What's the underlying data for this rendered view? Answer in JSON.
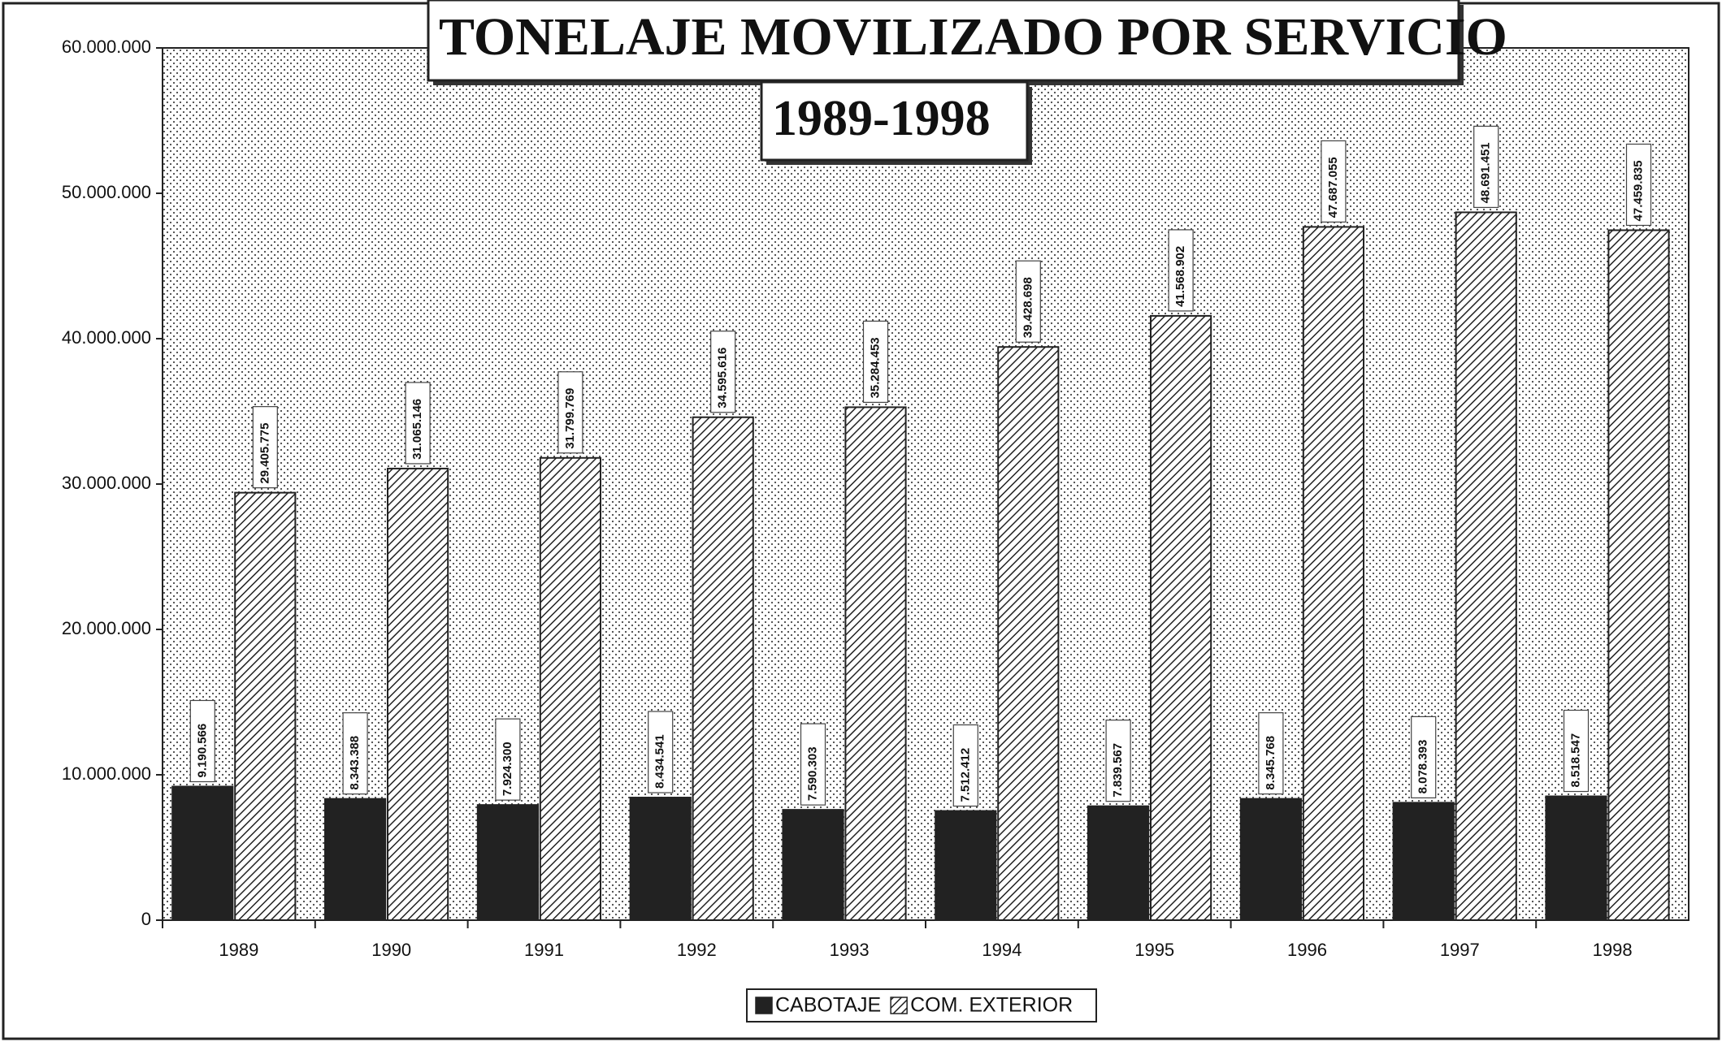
{
  "chart_data": {
    "type": "bar",
    "title": "TONELAJE MOVILIZADO POR SERVICIO",
    "subtitle": "1989-1998",
    "categories": [
      "1989",
      "1990",
      "1991",
      "1992",
      "1993",
      "1994",
      "1995",
      "1996",
      "1997",
      "1998"
    ],
    "series": [
      {
        "name": "CABOTAJE",
        "color": "#222222",
        "values": [
          9190566,
          8343388,
          7924300,
          8434541,
          7590303,
          7512412,
          7839567,
          8345768,
          8078393,
          8518547
        ],
        "value_labels": [
          "9.190.566",
          "8.343.388",
          "7.924.300",
          "8.434.541",
          "7.590.303",
          "7.512.412",
          "7.839.567",
          "8.345.768",
          "8.078.393",
          "8.518.547"
        ]
      },
      {
        "name": "COM. EXTERIOR",
        "color": "hatch",
        "values": [
          29405775,
          31065146,
          31799769,
          34595616,
          35284453,
          39428698,
          41568902,
          47687055,
          48691451,
          47459835
        ],
        "value_labels": [
          "29.405.775",
          "31.065.146",
          "31.799.769",
          "34.595.616",
          "35.284.453",
          "39.428.698",
          "41.568.902",
          "47.687.055",
          "48.691.451",
          "47.459.835"
        ]
      }
    ],
    "ylim": [
      0,
      60000000
    ],
    "yticks": [
      0,
      {
        "value": 10000000,
        "label": "10.000.000"
      },
      {
        "value": 20000000,
        "label": "20.000.000"
      },
      {
        "value": 30000000,
        "label": "30.000.000"
      },
      {
        "value": 40000000,
        "label": "40.000.000"
      },
      {
        "value": 50000000,
        "label": "50.000.000"
      },
      {
        "value": 60000000,
        "label": "60.000.000"
      }
    ],
    "legend": "bottom"
  }
}
